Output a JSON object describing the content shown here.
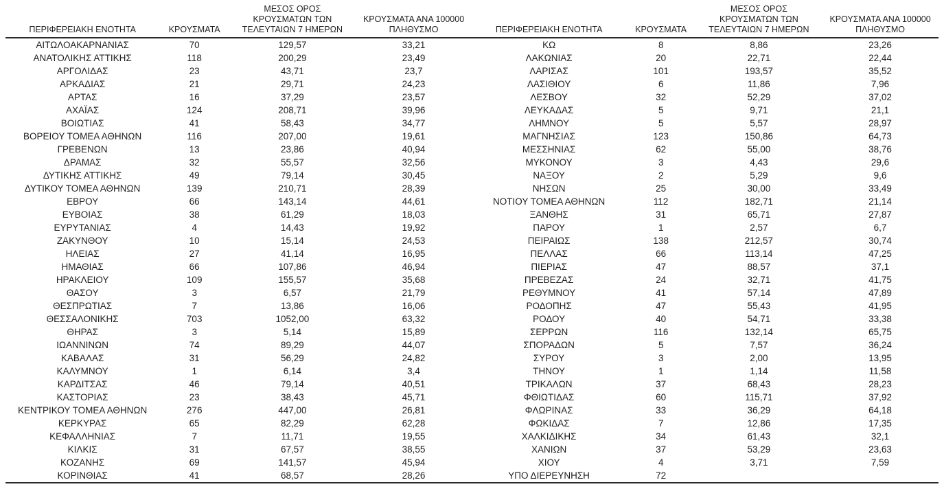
{
  "table": {
    "headers": {
      "region": "ΠΕΡΙΦΕΡΕΙΑΚΗ ΕΝΟΤΗΤΑ",
      "cases": "ΚΡΟΥΣΜΑΤΑ",
      "avg7": "ΜΕΣΟΣ ΟΡΟΣ\nΚΡΟΥΣΜΑΤΩΝ ΤΩΝ\nΤΕΛΕΥΤΑΙΩΝ 7 ΗΜΕΡΩΝ",
      "per100k": "ΚΡΟΥΣΜΑΤΑ ΑΝΑ 100000\nΠΛΗΘΥΣΜΟ"
    },
    "left_rows": [
      [
        "ΑΙΤΩΛΟΑΚΑΡΝΑΝΙΑΣ",
        "70",
        "129,57",
        "33,21"
      ],
      [
        "ΑΝΑΤΟΛΙΚΗΣ ΑΤΤΙΚΗΣ",
        "118",
        "200,29",
        "23,49"
      ],
      [
        "ΑΡΓΟΛΙΔΑΣ",
        "23",
        "43,71",
        "23,7"
      ],
      [
        "ΑΡΚΑΔΙΑΣ",
        "21",
        "29,71",
        "24,23"
      ],
      [
        "ΑΡΤΑΣ",
        "16",
        "37,29",
        "23,57"
      ],
      [
        "ΑΧΑΪΑΣ",
        "124",
        "208,71",
        "39,96"
      ],
      [
        "ΒΟΙΩΤΙΑΣ",
        "41",
        "58,43",
        "34,77"
      ],
      [
        "ΒΟΡΕΙΟΥ ΤΟΜΕΑ ΑΘΗΝΩΝ",
        "116",
        "207,00",
        "19,61"
      ],
      [
        "ΓΡΕΒΕΝΩΝ",
        "13",
        "23,86",
        "40,94"
      ],
      [
        "ΔΡΑΜΑΣ",
        "32",
        "55,57",
        "32,56"
      ],
      [
        "ΔΥΤΙΚΗΣ ΑΤΤΙΚΗΣ",
        "49",
        "79,14",
        "30,45"
      ],
      [
        "ΔΥΤΙΚΟΥ ΤΟΜΕΑ ΑΘΗΝΩΝ",
        "139",
        "210,71",
        "28,39"
      ],
      [
        "ΕΒΡΟΥ",
        "66",
        "143,14",
        "44,61"
      ],
      [
        "ΕΥΒΟΙΑΣ",
        "38",
        "61,29",
        "18,03"
      ],
      [
        "ΕΥΡΥΤΑΝΙΑΣ",
        "4",
        "14,43",
        "19,92"
      ],
      [
        "ΖΑΚΥΝΘΟΥ",
        "10",
        "15,14",
        "24,53"
      ],
      [
        "ΗΛΕΙΑΣ",
        "27",
        "41,14",
        "16,95"
      ],
      [
        "ΗΜΑΘΙΑΣ",
        "66",
        "107,86",
        "46,94"
      ],
      [
        "ΗΡΑΚΛΕΙΟΥ",
        "109",
        "155,57",
        "35,68"
      ],
      [
        "ΘΑΣΟΥ",
        "3",
        "6,57",
        "21,79"
      ],
      [
        "ΘΕΣΠΡΩΤΙΑΣ",
        "7",
        "13,86",
        "16,06"
      ],
      [
        "ΘΕΣΣΑΛΟΝΙΚΗΣ",
        "703",
        "1052,00",
        "63,32"
      ],
      [
        "ΘΗΡΑΣ",
        "3",
        "5,14",
        "15,89"
      ],
      [
        "ΙΩΑΝΝΙΝΩΝ",
        "74",
        "89,29",
        "44,07"
      ],
      [
        "ΚΑΒΑΛΑΣ",
        "31",
        "56,29",
        "24,82"
      ],
      [
        "ΚΑΛΥΜΝΟΥ",
        "1",
        "6,14",
        "3,4"
      ],
      [
        "ΚΑΡΔΙΤΣΑΣ",
        "46",
        "79,14",
        "40,51"
      ],
      [
        "ΚΑΣΤΟΡΙΑΣ",
        "23",
        "38,43",
        "45,71"
      ],
      [
        "ΚΕΝΤΡΙΚΟΥ ΤΟΜΕΑ ΑΘΗΝΩΝ",
        "276",
        "447,00",
        "26,81"
      ],
      [
        "ΚΕΡΚΥΡΑΣ",
        "65",
        "82,29",
        "62,28"
      ],
      [
        "ΚΕΦΑΛΛΗΝΙΑΣ",
        "7",
        "11,71",
        "19,55"
      ],
      [
        "ΚΙΛΚΙΣ",
        "31",
        "67,57",
        "38,55"
      ],
      [
        "ΚΟΖΑΝΗΣ",
        "69",
        "141,57",
        "45,94"
      ],
      [
        "ΚΟΡΙΝΘΙΑΣ",
        "41",
        "68,57",
        "28,26"
      ]
    ],
    "right_rows": [
      [
        "ΚΩ",
        "8",
        "8,86",
        "23,26"
      ],
      [
        "ΛΑΚΩΝΙΑΣ",
        "20",
        "22,71",
        "22,44"
      ],
      [
        "ΛΑΡΙΣΑΣ",
        "101",
        "193,57",
        "35,52"
      ],
      [
        "ΛΑΣΙΘΙΟΥ",
        "6",
        "11,86",
        "7,96"
      ],
      [
        "ΛΕΣΒΟΥ",
        "32",
        "52,29",
        "37,02"
      ],
      [
        "ΛΕΥΚΑΔΑΣ",
        "5",
        "9,71",
        "21,1"
      ],
      [
        "ΛΗΜΝΟΥ",
        "5",
        "5,57",
        "28,97"
      ],
      [
        "ΜΑΓΝΗΣΙΑΣ",
        "123",
        "150,86",
        "64,73"
      ],
      [
        "ΜΕΣΣΗΝΙΑΣ",
        "62",
        "55,00",
        "38,76"
      ],
      [
        "ΜΥΚΟΝΟΥ",
        "3",
        "4,43",
        "29,6"
      ],
      [
        "ΝΑΞΟΥ",
        "2",
        "5,29",
        "9,6"
      ],
      [
        "ΝΗΣΩΝ",
        "25",
        "30,00",
        "33,49"
      ],
      [
        "ΝΟΤΙΟΥ ΤΟΜΕΑ ΑΘΗΝΩΝ",
        "112",
        "182,71",
        "21,14"
      ],
      [
        "ΞΑΝΘΗΣ",
        "31",
        "65,71",
        "27,87"
      ],
      [
        "ΠΑΡΟΥ",
        "1",
        "2,57",
        "6,7"
      ],
      [
        "ΠΕΙΡΑΙΩΣ",
        "138",
        "212,57",
        "30,74"
      ],
      [
        "ΠΕΛΛΑΣ",
        "66",
        "113,14",
        "47,25"
      ],
      [
        "ΠΙΕΡΙΑΣ",
        "47",
        "88,57",
        "37,1"
      ],
      [
        "ΠΡΕΒΕΖΑΣ",
        "24",
        "32,71",
        "41,75"
      ],
      [
        "ΡΕΘΥΜΝΟΥ",
        "41",
        "57,14",
        "47,89"
      ],
      [
        "ΡΟΔΟΠΗΣ",
        "47",
        "55,43",
        "41,95"
      ],
      [
        "ΡΟΔΟΥ",
        "40",
        "54,71",
        "33,38"
      ],
      [
        "ΣΕΡΡΩΝ",
        "116",
        "132,14",
        "65,75"
      ],
      [
        "ΣΠΟΡΑΔΩΝ",
        "5",
        "7,57",
        "36,24"
      ],
      [
        "ΣΥΡΟΥ",
        "3",
        "2,00",
        "13,95"
      ],
      [
        "ΤΗΝΟΥ",
        "1",
        "1,14",
        "11,58"
      ],
      [
        "ΤΡΙΚΑΛΩΝ",
        "37",
        "68,43",
        "28,23"
      ],
      [
        "ΦΘΙΩΤΙΔΑΣ",
        "60",
        "115,71",
        "37,92"
      ],
      [
        "ΦΛΩΡΙΝΑΣ",
        "33",
        "36,29",
        "64,18"
      ],
      [
        "ΦΩΚΙΔΑΣ",
        "7",
        "12,86",
        "17,35"
      ],
      [
        "ΧΑΛΚΙΔΙΚΗΣ",
        "34",
        "61,43",
        "32,1"
      ],
      [
        "ΧΑΝΙΩΝ",
        "37",
        "53,29",
        "23,63"
      ],
      [
        "ΧΙΟΥ",
        "4",
        "3,71",
        "7,59"
      ],
      [
        "ΥΠΟ ΔΙΕΡΕΥΝΗΣΗ",
        "72",
        "",
        ""
      ]
    ]
  }
}
